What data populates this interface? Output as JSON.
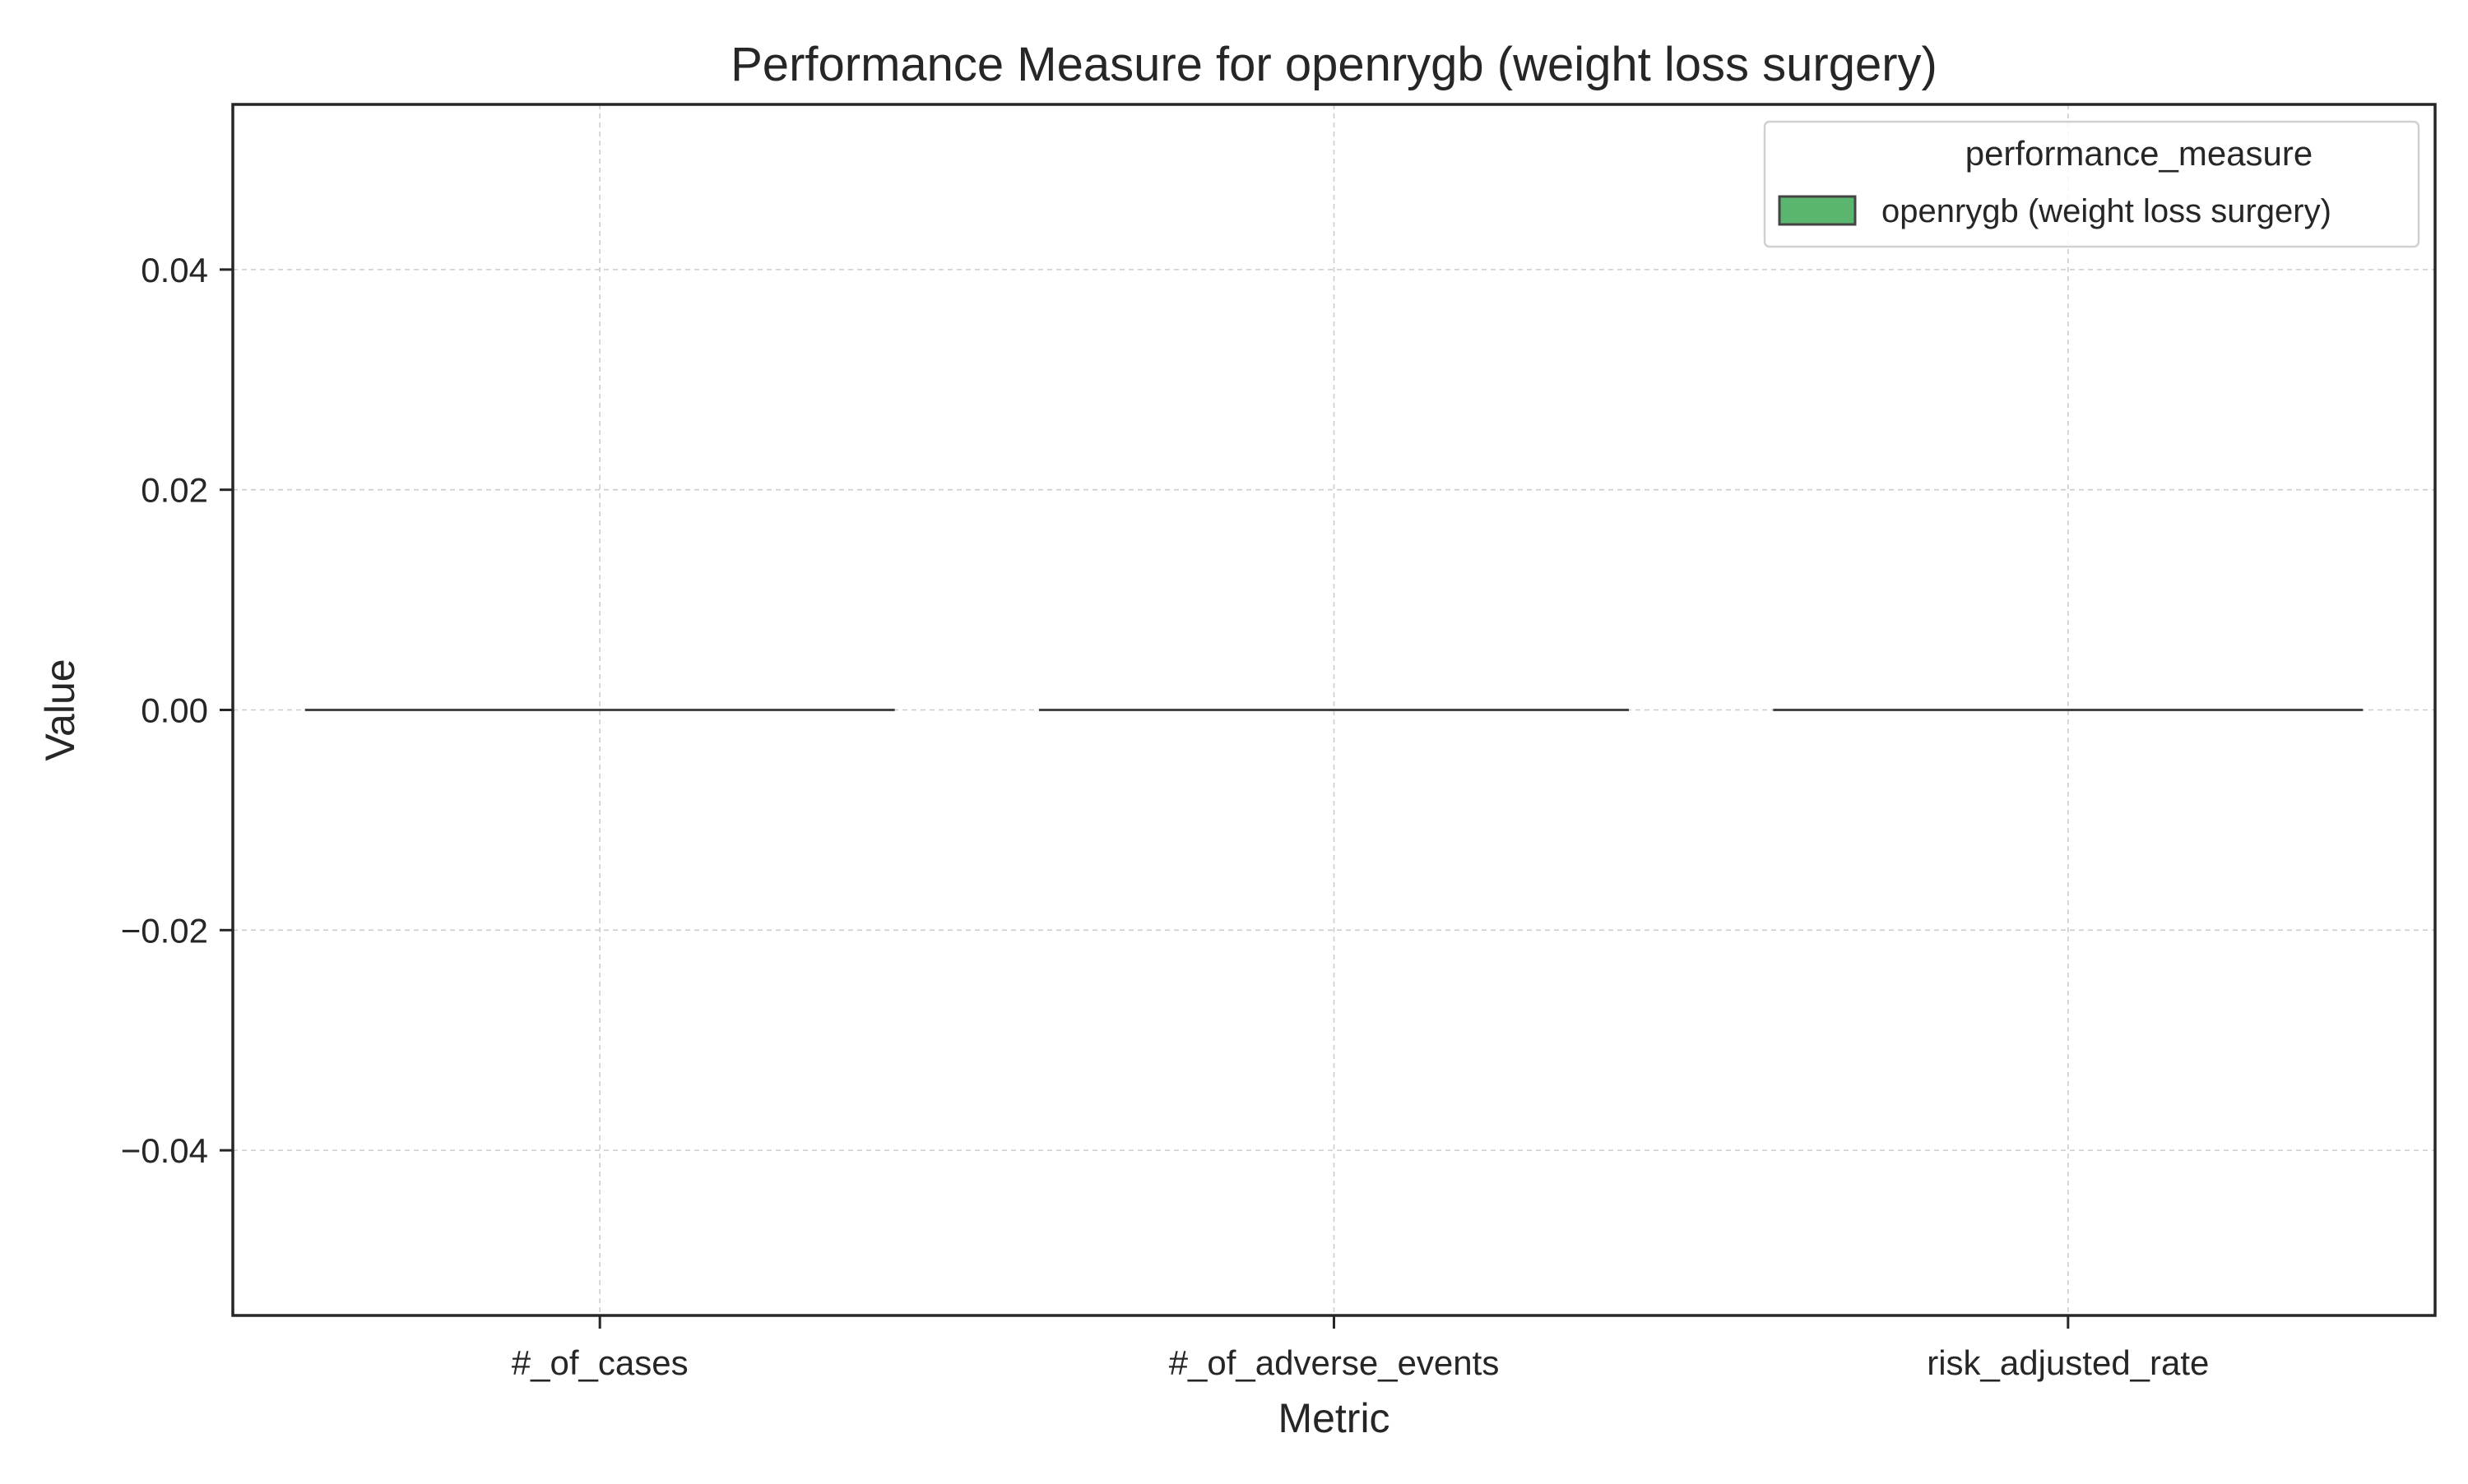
{
  "chart_data": {
    "type": "bar",
    "title": "Performance Measure for openrygb (weight loss surgery)",
    "xlabel": "Metric",
    "ylabel": "Value",
    "categories": [
      "#_of_cases",
      "#_of_adverse_events",
      "risk_adjusted_rate"
    ],
    "series": [
      {
        "name": "openrygb (weight loss surgery)",
        "values": [
          0,
          0,
          0
        ],
        "color": "#5ab56e"
      }
    ],
    "ylim": [
      -0.055,
      0.055
    ],
    "yticks": [
      0.04,
      0.02,
      0.0,
      -0.02,
      -0.04
    ],
    "ytick_labels": [
      "0.04",
      "0.02",
      "0.00",
      "−0.02",
      "−0.04"
    ],
    "grid": true,
    "legend": {
      "title": "performance_measure",
      "placement": "top-right"
    }
  }
}
